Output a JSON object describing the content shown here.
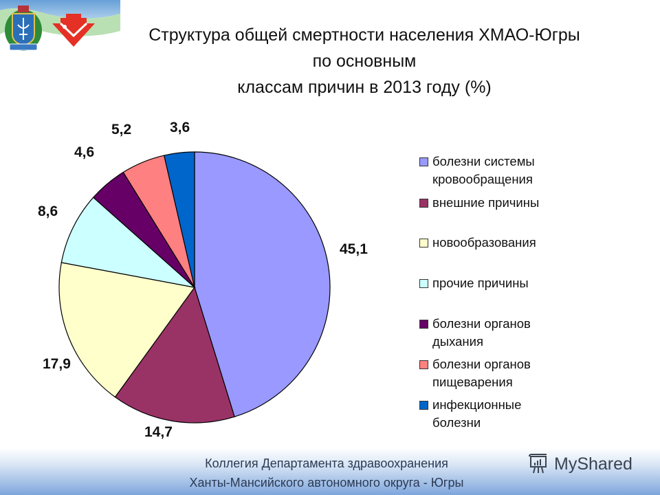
{
  "header": {
    "title_lines": [
      "Структура общей смертности населения ХМАО-Югры",
      "по основным",
      "классам причин в 2013 году (%)"
    ],
    "logos": [
      "coat-of-arms-icon",
      "regional-emblem-icon"
    ]
  },
  "chart_data": {
    "type": "pie",
    "title": "Структура общей смертности населения ХМАО-Югры по основным классам причин в 2013 году (%)",
    "start_angle": "12 o'clock",
    "direction": "clockwise",
    "categories": [
      "болезни системы кровообращения",
      "внешние причины",
      "новообразования",
      "прочие причины",
      "болезни органов дыхания",
      "болезни органов пищеварения",
      "инфекционные болезни"
    ],
    "values": [
      45.1,
      14.7,
      17.9,
      8.6,
      4.6,
      5.2,
      3.6
    ],
    "value_labels": [
      "45,1",
      "14,7",
      "17,9",
      "8,6",
      "4,6",
      "5,2",
      "3,6"
    ],
    "colors": [
      "#9999ff",
      "#993366",
      "#ffffcc",
      "#ccffff",
      "#660066",
      "#ff8080",
      "#0066cc"
    ],
    "legend_position": "right"
  },
  "legend": {
    "items": [
      {
        "label": "болезни системы\nкровообращения",
        "color": "#9999ff"
      },
      {
        "label": "внешние причины",
        "color": "#993366"
      },
      {
        "label": "новообразования",
        "color": "#ffffcc"
      },
      {
        "label": "прочие причины",
        "color": "#ccffff"
      },
      {
        "label": "болезни органов\nдыхания",
        "color": "#660066"
      },
      {
        "label": "болезни органов\nпищеварения",
        "color": "#ff8080"
      },
      {
        "label": "инфекционные\nболезни",
        "color": "#0066cc"
      }
    ]
  },
  "footer": {
    "line1": "Коллегия Департамента здравоохранения",
    "line2": "Ханты-Мансийского автономного округа - Югры",
    "brand": "MyShared"
  }
}
